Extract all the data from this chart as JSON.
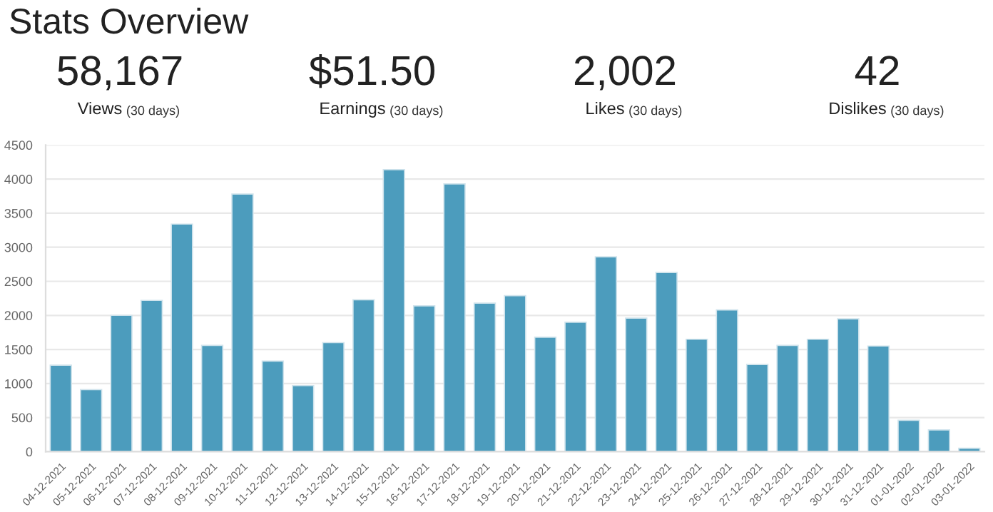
{
  "chart_data": [
    {
      "type": "other",
      "title": "Stats Overview",
      "annotations": [
        "58,167",
        "Views",
        "(30 days)",
        "$51.50",
        "Earnings",
        "(30 days)",
        "2,002",
        "Likes",
        "(30 days)",
        "42",
        "Dislikes",
        "(30 days)"
      ]
    },
    {
      "type": "bar",
      "categories": [
        "04-12-2021",
        "05-12-2021",
        "06-12-2021",
        "07-12-2021",
        "08-12-2021",
        "09-12-2021",
        "10-12-2021",
        "11-12-2021",
        "12-12-2021",
        "13-12-2021",
        "14-12-2021",
        "15-12-2021",
        "16-12-2021",
        "17-12-2021",
        "18-12-2021",
        "19-12-2021",
        "20-12-2021",
        "21-12-2021",
        "22-12-2021",
        "23-12-2021",
        "24-12-2021",
        "25-12-2021",
        "26-12-2021",
        "27-12-2021",
        "28-12-2021",
        "29-12-2021",
        "30-12-2021",
        "31-12-2021",
        "01-01-2022",
        "02-01-2022",
        "03-01-2022"
      ],
      "values": [
        1270,
        910,
        2000,
        2220,
        3340,
        1560,
        3780,
        1330,
        970,
        1600,
        2230,
        4140,
        2140,
        3930,
        2180,
        2290,
        1680,
        1900,
        2860,
        1960,
        2630,
        1650,
        2080,
        1280,
        1560,
        1650,
        1950,
        1550,
        460,
        320,
        50
      ],
      "color": "#4c9cbd",
      "ylim": [
        0,
        4500
      ],
      "yticks": [
        0,
        500,
        1000,
        1500,
        2000,
        2500,
        3000,
        3500,
        4000,
        4500
      ],
      "grid": "y"
    }
  ]
}
